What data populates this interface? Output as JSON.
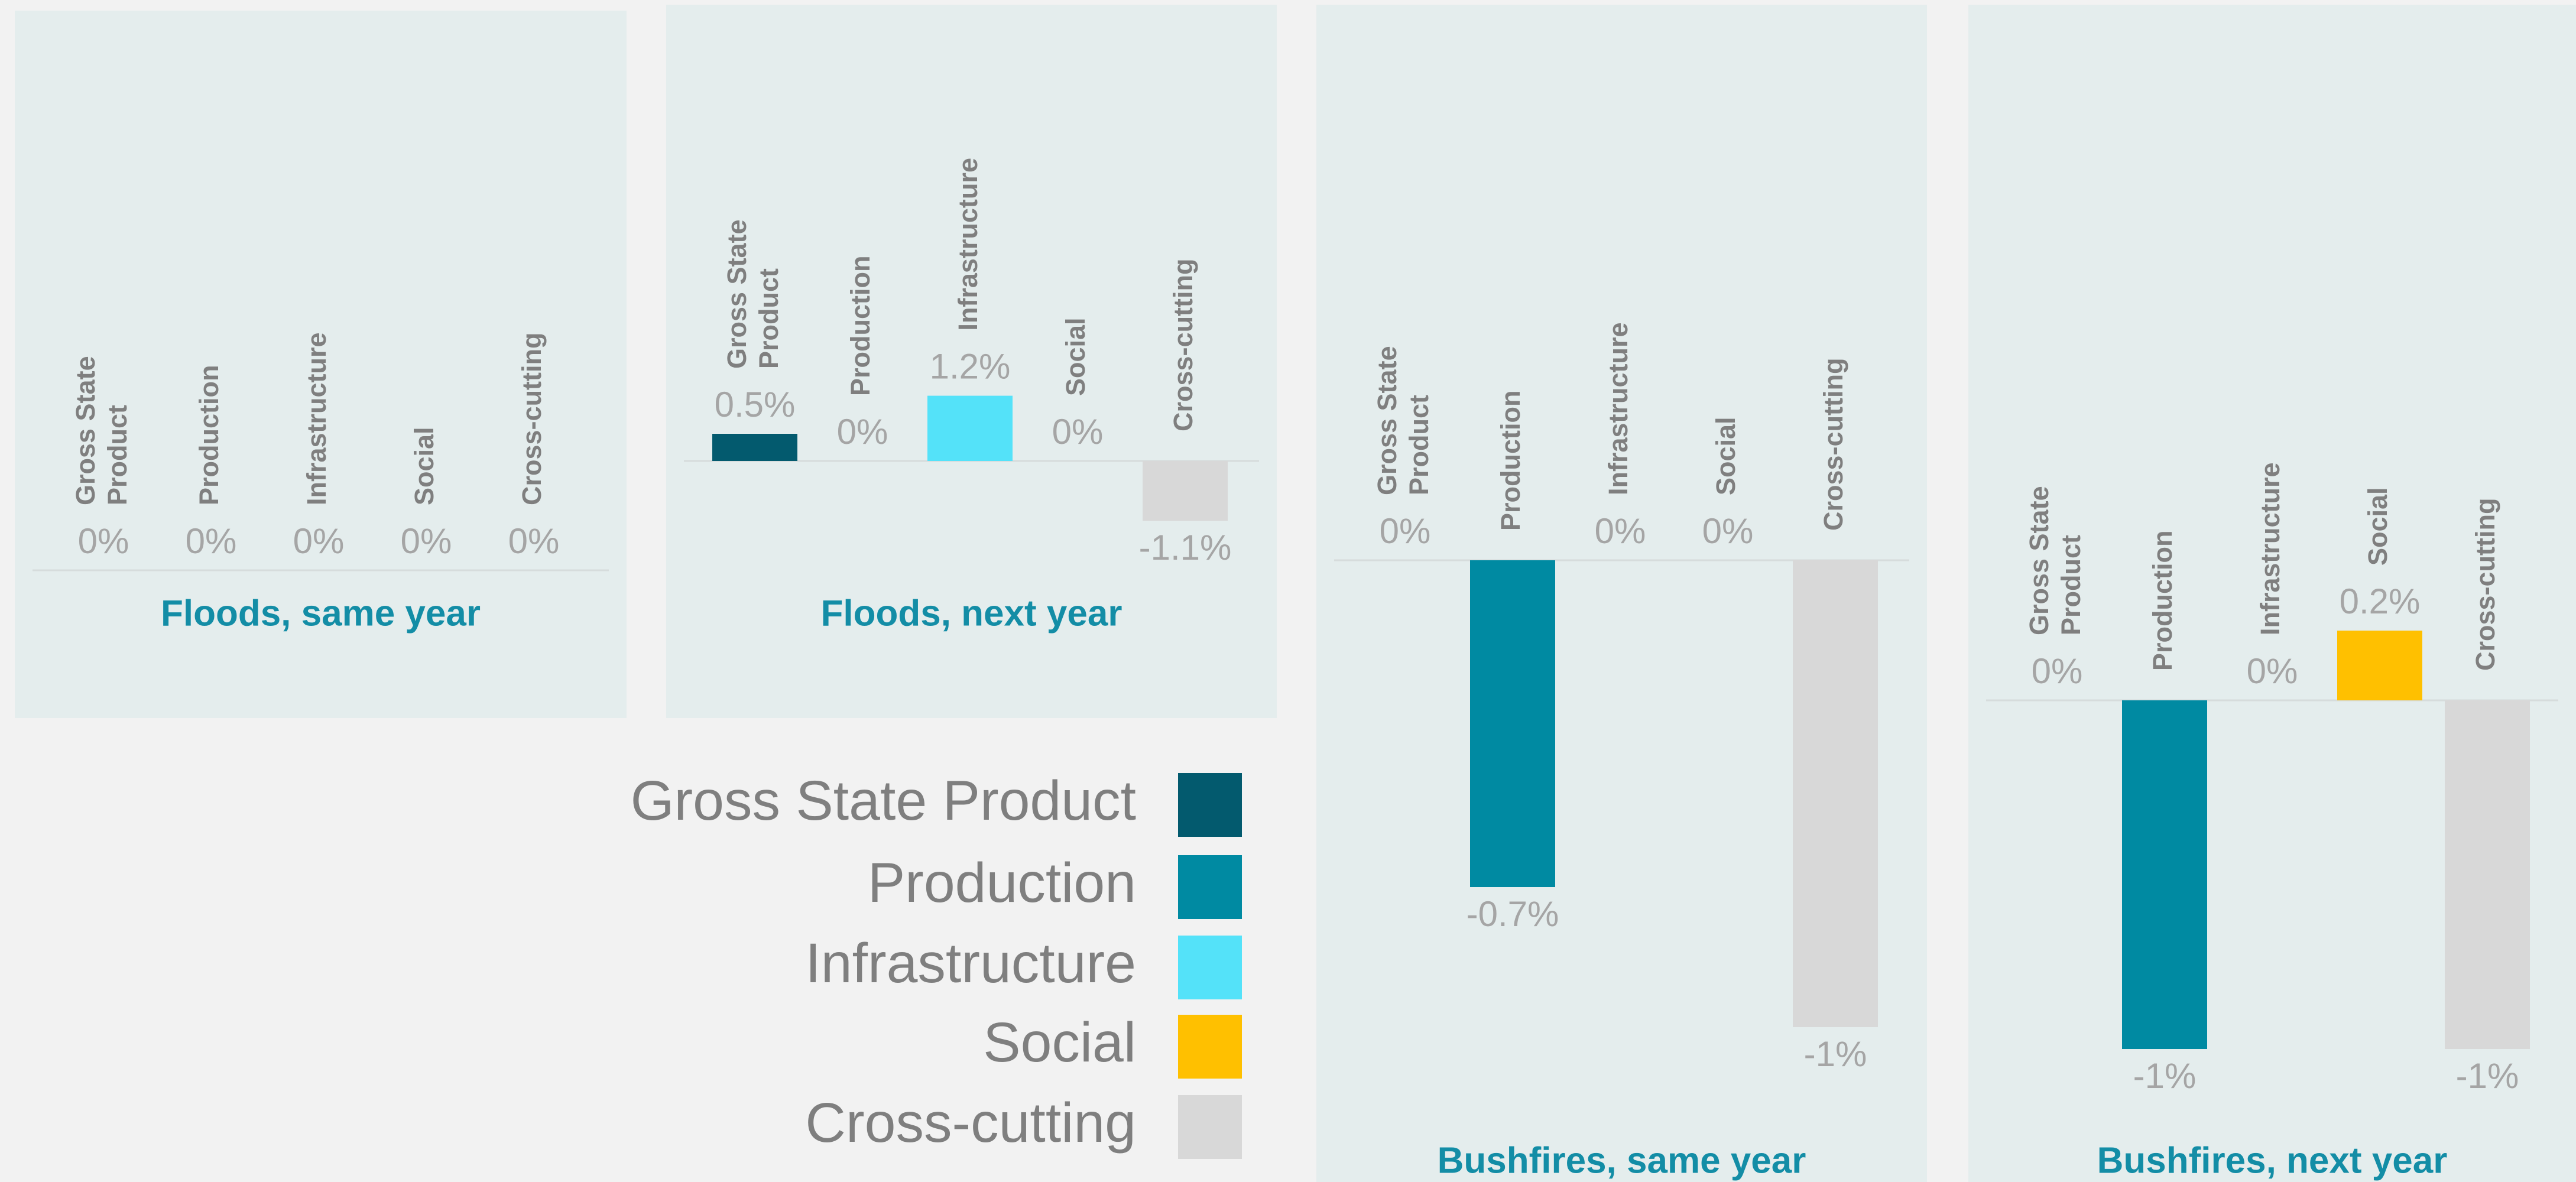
{
  "chart_data": [
    {
      "type": "bar",
      "title": "Floods, same year",
      "categories": [
        "Gross State Product",
        "Production",
        "Infrastructure",
        "Social",
        "Cross-cutting"
      ],
      "values": [
        0,
        0,
        0,
        0,
        0
      ],
      "value_labels": [
        "0%",
        "0%",
        "0%",
        "0%",
        "0%"
      ]
    },
    {
      "type": "bar",
      "title": "Floods, next year",
      "categories": [
        "Gross State Product",
        "Production",
        "Infrastructure",
        "Social",
        "Cross-cutting"
      ],
      "values": [
        0.5,
        0,
        1.2,
        0,
        -1.1
      ],
      "value_labels": [
        "0.5%",
        "0%",
        "1.2%",
        "0%",
        "-1.1%"
      ]
    },
    {
      "type": "bar",
      "title": "Bushfires, same year",
      "categories": [
        "Gross State Product",
        "Production",
        "Infrastructure",
        "Social",
        "Cross-cutting"
      ],
      "values": [
        0,
        -0.7,
        0,
        0,
        -1
      ],
      "value_labels": [
        "0%",
        "-0.7%",
        "0%",
        "0%",
        "-1%"
      ]
    },
    {
      "type": "bar",
      "title": "Bushfires, next year",
      "categories": [
        "Gross State Product",
        "Production",
        "Infrastructure",
        "Social",
        "Cross-cutting"
      ],
      "values": [
        0,
        -1,
        0,
        0.2,
        -1
      ],
      "value_labels": [
        "0%",
        "-1%",
        "0%",
        "0.2%",
        "-1%"
      ]
    }
  ],
  "legend": {
    "items": [
      {
        "name": "Gross State Product",
        "color": "#035a6e"
      },
      {
        "name": "Production",
        "color": "#008aa2"
      },
      {
        "name": "Infrastructure",
        "color": "#54e2f9"
      },
      {
        "name": "Social",
        "color": "#ffc000"
      },
      {
        "name": "Cross-cutting",
        "color": "#d8d8d8"
      }
    ]
  }
}
